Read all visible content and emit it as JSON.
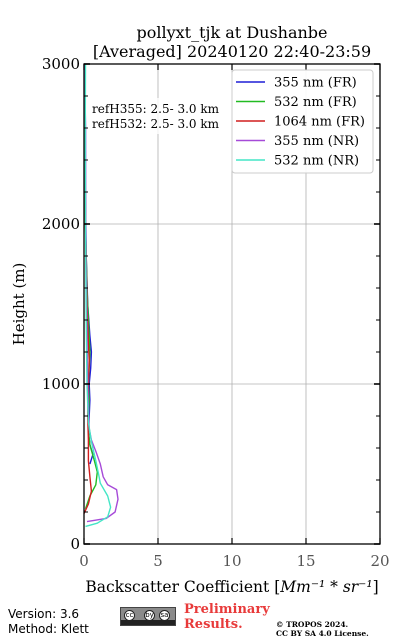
{
  "chart_data": {
    "type": "line",
    "title": [
      "pollyxt_tjk at Dushanbe",
      "[Averaged] 20240120 22:40-23:59"
    ],
    "xlabel_prefix": "Backscatter Coefficient [",
    "xlabel_unit": "Mm⁻¹ * sr⁻¹",
    "xlabel_suffix": "]",
    "ylabel": "Height (m)",
    "xlim": [
      0,
      20
    ],
    "ylim": [
      0,
      3000
    ],
    "xticks": [
      0,
      5,
      10,
      15,
      20
    ],
    "yticks": [
      0,
      1000,
      2000,
      3000
    ],
    "grid": true,
    "legend_position": "top-right",
    "annotations": [
      "refH355:  2.5- 3.0 km",
      "refH532:  2.5- 3.0 km"
    ],
    "series": [
      {
        "name": "355 nm (FR)",
        "color": "#1f1fd6",
        "points": [
          [
            0.4,
            500
          ],
          [
            0.6,
            560
          ],
          [
            0.4,
            620
          ],
          [
            0.3,
            700
          ],
          [
            0.35,
            800
          ],
          [
            0.4,
            900
          ],
          [
            0.35,
            1000
          ],
          [
            0.45,
            1100
          ],
          [
            0.5,
            1200
          ],
          [
            0.4,
            1300
          ],
          [
            0.25,
            1500
          ],
          [
            0.15,
            1800
          ],
          [
            0.1,
            2200
          ],
          [
            0.1,
            2600
          ],
          [
            0.05,
            3000
          ]
        ]
      },
      {
        "name": "532 nm (FR)",
        "color": "#22bb22",
        "points": [
          [
            0.1,
            220
          ],
          [
            0.4,
            300
          ],
          [
            0.8,
            370
          ],
          [
            0.9,
            450
          ],
          [
            0.7,
            520
          ],
          [
            0.4,
            620
          ],
          [
            0.3,
            700
          ],
          [
            0.3,
            800
          ],
          [
            0.35,
            900
          ],
          [
            0.3,
            1000
          ],
          [
            0.35,
            1100
          ],
          [
            0.4,
            1200
          ],
          [
            0.3,
            1400
          ],
          [
            0.2,
            1600
          ],
          [
            0.1,
            2000
          ],
          [
            0.05,
            2500
          ],
          [
            0.05,
            3000
          ]
        ]
      },
      {
        "name": "1064 nm (FR)",
        "color": "#d11f1f",
        "points": [
          [
            0.0,
            190
          ],
          [
            0.3,
            250
          ],
          [
            0.5,
            330
          ],
          [
            0.4,
            420
          ],
          [
            0.3,
            520
          ],
          [
            0.3,
            650
          ],
          [
            0.25,
            800
          ],
          [
            0.3,
            1000
          ],
          [
            0.35,
            1150
          ],
          [
            0.3,
            1250
          ],
          [
            0.2,
            1500
          ],
          [
            0.1,
            2000
          ],
          [
            0.05,
            3000
          ]
        ]
      },
      {
        "name": "355 nm (NR)",
        "color": "#a64ad8",
        "points": [
          [
            0.2,
            140
          ],
          [
            1.5,
            160
          ],
          [
            2.1,
            200
          ],
          [
            2.3,
            280
          ],
          [
            2.2,
            340
          ],
          [
            1.6,
            370
          ],
          [
            1.3,
            420
          ],
          [
            1.1,
            500
          ],
          [
            0.8,
            580
          ],
          [
            0.5,
            650
          ],
          [
            0.35,
            720
          ],
          [
            0.3,
            850
          ],
          [
            0.25,
            1000
          ],
          [
            0.2,
            1300
          ],
          [
            0.15,
            1700
          ],
          [
            0.1,
            2200
          ],
          [
            0.08,
            3000
          ]
        ]
      },
      {
        "name": "532 nm (NR)",
        "color": "#44e6c6",
        "points": [
          [
            0.1,
            110
          ],
          [
            0.9,
            130
          ],
          [
            1.6,
            170
          ],
          [
            1.8,
            230
          ],
          [
            1.6,
            300
          ],
          [
            1.1,
            380
          ],
          [
            1.0,
            430
          ],
          [
            0.8,
            520
          ],
          [
            0.5,
            640
          ],
          [
            0.3,
            760
          ],
          [
            0.2,
            1000
          ],
          [
            0.15,
            1400
          ],
          [
            0.1,
            2000
          ],
          [
            0.08,
            2500
          ],
          [
            0.1,
            3000
          ]
        ]
      }
    ]
  },
  "footer": {
    "version": "Version: 3.6",
    "method": "Method: Klett",
    "preliminary_1": "Preliminary",
    "preliminary_2": "Results.",
    "copyright_1": "© TROPOS 2024.",
    "copyright_2": "CC BY SA 4.0 License.",
    "license_badge": [
      "cc",
      "by",
      "sa"
    ]
  }
}
